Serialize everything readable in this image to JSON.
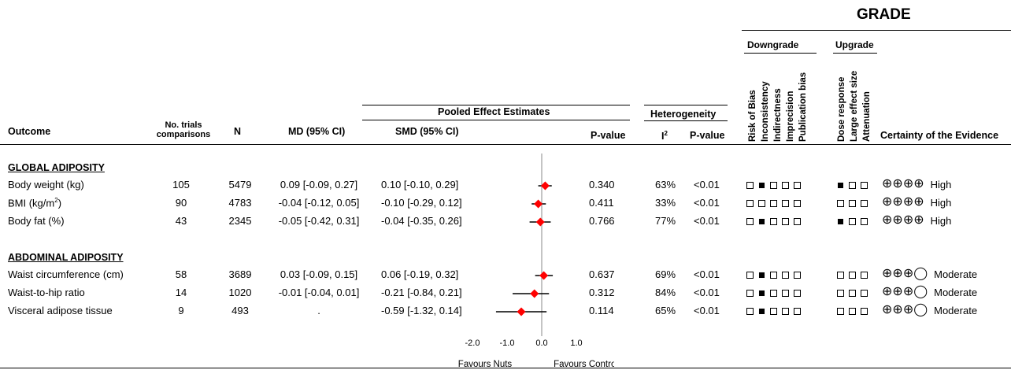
{
  "grade_title": "GRADE",
  "grade_groups": {
    "downgrade": "Downgrade",
    "upgrade": "Upgrade"
  },
  "downgrade_criteria": [
    "Risk of Bias",
    "Inconsistency",
    "Indirectness",
    "Imprecision",
    "Publication bias"
  ],
  "upgrade_criteria": [
    "Dose response",
    "Large effect size",
    "Attenuation"
  ],
  "headers": {
    "outcome": "Outcome",
    "trials_line1": "No. trials",
    "trials_line2": "comparisons",
    "n": "N",
    "md": "MD (95% CI)",
    "pooled": "Pooled Effect Estimates",
    "smd": "SMD (95% CI)",
    "pvalue": "P-value",
    "heterogeneity": "Heterogeneity",
    "i2": "I",
    "i2_sup": "2",
    "het_pvalue": "P-value",
    "certainty": "Certainty of the Evidence"
  },
  "sections": [
    {
      "title": "GLOBAL ADIPOSITY",
      "rows": [
        {
          "outcome": "Body weight (kg)",
          "outcome_sup": "",
          "trials": "105",
          "n": "5479",
          "md": "0.09 [-0.09, 0.27]",
          "smd": "0.10 [-0.10, 0.29]",
          "p": "0.340",
          "i2": "63%",
          "het_p": "<0.01",
          "down": [
            0,
            1,
            0,
            0,
            0
          ],
          "up": [
            1,
            0,
            0
          ],
          "cert_symbols": "⊕⊕⊕⊕",
          "cert": "High"
        },
        {
          "outcome": "BMI (kg/m",
          "outcome_sup": "2",
          "outcome_after": ")",
          "trials": "90",
          "n": "4783",
          "md": "-0.04 [-0.12, 0.05]",
          "smd": "-0.10 [-0.29, 0.12]",
          "p": "0.411",
          "i2": "33%",
          "het_p": "<0.01",
          "down": [
            0,
            0,
            0,
            0,
            0
          ],
          "up": [
            0,
            0,
            0
          ],
          "cert_symbols": "⊕⊕⊕⊕",
          "cert": "High"
        },
        {
          "outcome": "Body fat (%)",
          "outcome_sup": "",
          "trials": "43",
          "n": "2345",
          "md": "-0.05 [-0.42, 0.31]",
          "smd": "-0.04 [-0.35, 0.26]",
          "p": "0.766",
          "i2": "77%",
          "het_p": "<0.01",
          "down": [
            0,
            1,
            0,
            0,
            0
          ],
          "up": [
            1,
            0,
            0
          ],
          "cert_symbols": "⊕⊕⊕⊕",
          "cert": "High"
        }
      ]
    },
    {
      "title": "ABDOMINAL ADIPOSITY",
      "rows": [
        {
          "outcome": "Waist circumference (cm)",
          "outcome_sup": "",
          "trials": "58",
          "n": "3689",
          "md": "0.03 [-0.09, 0.15]",
          "smd": "0.06 [-0.19, 0.32]",
          "p": "0.637",
          "i2": "69%",
          "het_p": "<0.01",
          "down": [
            0,
            1,
            0,
            0,
            0
          ],
          "up": [
            0,
            0,
            0
          ],
          "cert_symbols": "⊕⊕⊕◯",
          "cert": "Moderate"
        },
        {
          "outcome": "Waist-to-hip ratio",
          "outcome_sup": "",
          "trials": "14",
          "n": "1020",
          "md": "-0.01 [-0.04, 0.01]",
          "smd": "-0.21 [-0.84, 0.21]",
          "p": "0.312",
          "i2": "84%",
          "het_p": "<0.01",
          "down": [
            0,
            1,
            0,
            0,
            0
          ],
          "up": [
            0,
            0,
            0
          ],
          "cert_symbols": "⊕⊕⊕◯",
          "cert": "Moderate"
        },
        {
          "outcome": "Visceral adipose tissue",
          "outcome_sup": "",
          "trials": "9",
          "n": "493",
          "md": ".",
          "smd": "-0.59 [-1.32, 0.14]",
          "p": "0.114",
          "i2": "65%",
          "het_p": "<0.01",
          "down": [
            0,
            1,
            0,
            0,
            0
          ],
          "up": [
            0,
            0,
            0
          ],
          "cert_symbols": "⊕⊕⊕◯",
          "cert": "Moderate"
        }
      ]
    }
  ],
  "chart_data": {
    "type": "scatter",
    "title": "",
    "xlabel": "",
    "ylabel": "",
    "xlim": [
      -2.0,
      1.0
    ],
    "xticks": [
      "-2.0",
      "-1.0",
      "0.0",
      "1.0"
    ],
    "xtick_values": [
      -2.0,
      -1.0,
      0.0,
      1.0
    ],
    "reference_line": 0,
    "favours_left": "Favours Nuts",
    "favours_right": "Favours Control",
    "marker_color": "#ff0000",
    "points": [
      {
        "outcome": "Body weight (kg)",
        "smd": 0.1,
        "lower": -0.1,
        "upper": 0.29
      },
      {
        "outcome": "BMI (kg/m2)",
        "smd": -0.1,
        "lower": -0.29,
        "upper": 0.12
      },
      {
        "outcome": "Body fat (%)",
        "smd": -0.04,
        "lower": -0.35,
        "upper": 0.26
      },
      {
        "outcome": "Waist circumference (cm)",
        "smd": 0.06,
        "lower": -0.19,
        "upper": 0.32
      },
      {
        "outcome": "Waist-to-hip ratio",
        "smd": -0.21,
        "lower": -0.84,
        "upper": 0.21
      },
      {
        "outcome": "Visceral adipose tissue",
        "smd": -0.59,
        "lower": -1.32,
        "upper": 0.14
      }
    ]
  }
}
